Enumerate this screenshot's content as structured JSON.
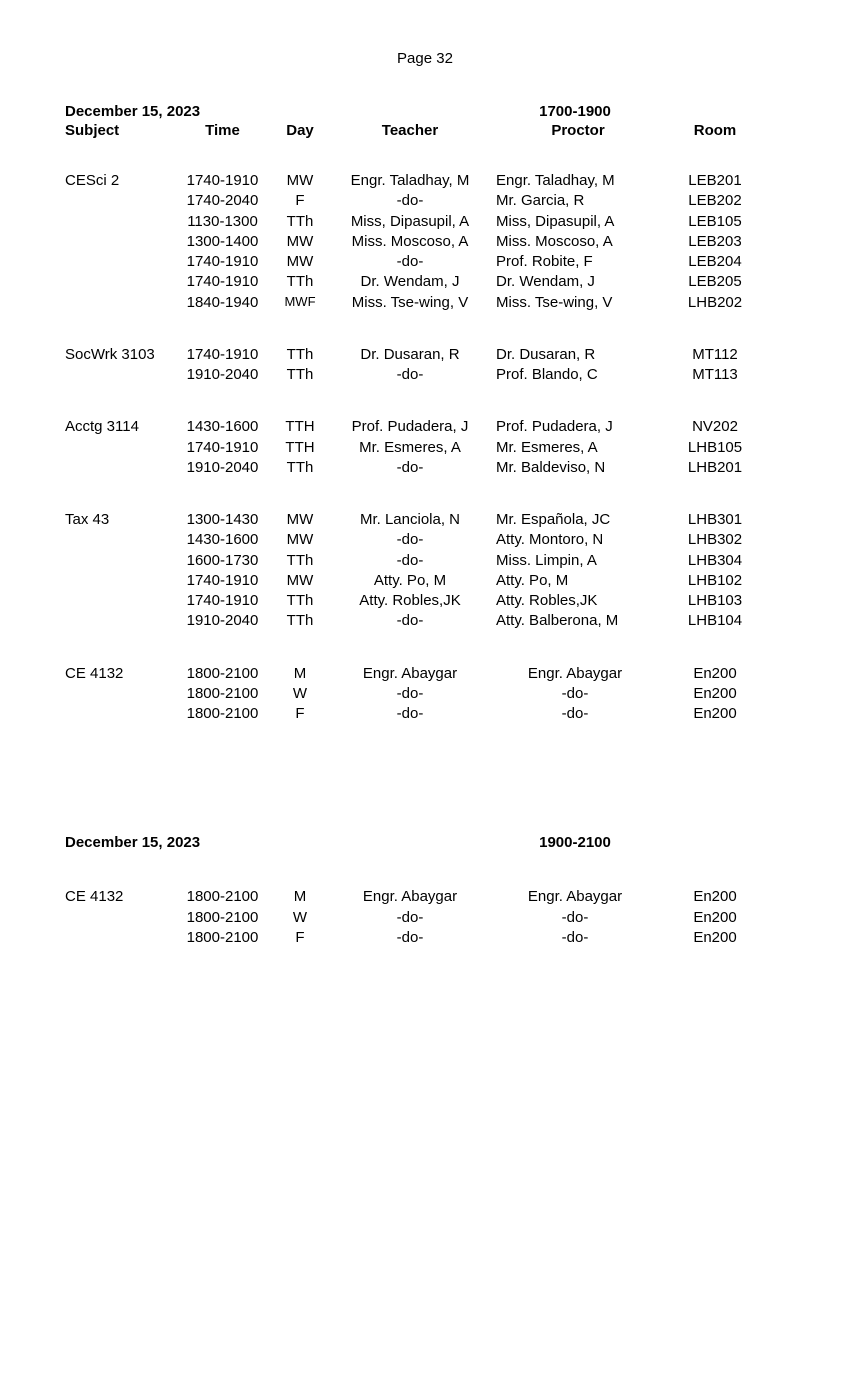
{
  "page_label": "Page 32",
  "headers": {
    "subject": "Subject",
    "time": "Time",
    "day": "Day",
    "teacher": "Teacher",
    "proctor": "Proctor",
    "room": "Room"
  },
  "section1": {
    "date": "December 15, 2023",
    "timeslot": "1700-1900",
    "groups": [
      {
        "subject": "CESci 2",
        "rows": [
          {
            "time": "1740-1910",
            "day": "MW",
            "teacher": "Engr. Taladhay, M",
            "proctor": "Engr. Taladhay, M",
            "room": "LEB201"
          },
          {
            "time": "1740-2040",
            "day": "F",
            "teacher": "-do-",
            "proctor": "Mr. Garcia, R",
            "room": "LEB202"
          },
          {
            "time": "1130-1300",
            "day": "TTh",
            "teacher": "Miss, Dipasupil, A",
            "proctor": "Miss, Dipasupil, A",
            "room": "LEB105"
          },
          {
            "time": "1300-1400",
            "day": "MW",
            "teacher": "Miss. Moscoso, A",
            "proctor": "Miss. Moscoso, A",
            "room": "LEB203"
          },
          {
            "time": "1740-1910",
            "day": "MW",
            "teacher": "-do-",
            "proctor": "Prof. Robite, F",
            "room": "LEB204"
          },
          {
            "time": "1740-1910",
            "day": "TTh",
            "teacher": "Dr. Wendam, J",
            "proctor": "Dr. Wendam, J",
            "room": "LEB205"
          },
          {
            "time": "1840-1940",
            "day": "MWF",
            "day_small": true,
            "teacher": "Miss. Tse-wing, V",
            "proctor": "Miss. Tse-wing, V",
            "room": "LHB202"
          }
        ]
      },
      {
        "subject": "SocWrk 3103",
        "rows": [
          {
            "time": "1740-1910",
            "day": "TTh",
            "teacher": "Dr. Dusaran, R",
            "proctor": "Dr. Dusaran, R",
            "room": "MT112"
          },
          {
            "time": "1910-2040",
            "day": "TTh",
            "teacher": "-do-",
            "proctor": "Prof. Blando, C",
            "room": "MT113"
          }
        ]
      },
      {
        "subject": "Acctg 3114",
        "rows": [
          {
            "time": "1430-1600",
            "day": "TTH",
            "teacher": "Prof. Pudadera, J",
            "proctor": "Prof. Pudadera, J",
            "room": "NV202"
          },
          {
            "time": "1740-1910",
            "day": "TTH",
            "teacher": "Mr. Esmeres, A",
            "proctor": "Mr. Esmeres, A",
            "room": "LHB105"
          },
          {
            "time": "1910-2040",
            "day": "TTh",
            "teacher": "-do-",
            "proctor": "Mr. Baldeviso, N",
            "room": "LHB201"
          }
        ]
      },
      {
        "subject": "Tax 43",
        "rows": [
          {
            "time": "1300-1430",
            "day": "MW",
            "teacher": "Mr. Lanciola, N",
            "proctor": "Mr. Española, JC",
            "room": "LHB301"
          },
          {
            "time": "1430-1600",
            "day": "MW",
            "teacher": "-do-",
            "proctor": "Atty. Montoro, N",
            "room": "LHB302"
          },
          {
            "time": "1600-1730",
            "day": "TTh",
            "teacher": "-do-",
            "proctor": "Miss. Limpin, A",
            "room": "LHB304"
          },
          {
            "time": "1740-1910",
            "day": "MW",
            "teacher": "Atty. Po, M",
            "proctor": "Atty. Po, M",
            "room": "LHB102"
          },
          {
            "time": "1740-1910",
            "day": "TTh",
            "teacher": "Atty. Robles,JK",
            "proctor": "Atty. Robles,JK",
            "room": "LHB103"
          },
          {
            "time": "1910-2040",
            "day": "TTh",
            "teacher": "-do-",
            "proctor": "Atty. Balberona, M",
            "room": "LHB104"
          }
        ]
      },
      {
        "subject": "CE 4132",
        "proctor_center": true,
        "rows": [
          {
            "time": "1800-2100",
            "day": "M",
            "teacher": "Engr. Abaygar",
            "proctor": "Engr. Abaygar",
            "room": "En200"
          },
          {
            "time": "1800-2100",
            "day": "W",
            "teacher": "-do-",
            "proctor": "-do-",
            "room": "En200"
          },
          {
            "time": "1800-2100",
            "day": "F",
            "teacher": "-do-",
            "proctor": "-do-",
            "room": "En200"
          }
        ]
      }
    ]
  },
  "section2": {
    "date": "December 15, 2023",
    "timeslot": "1900-2100",
    "groups": [
      {
        "subject": "CE 4132",
        "proctor_center": true,
        "rows": [
          {
            "time": "1800-2100",
            "day": "M",
            "teacher": "Engr. Abaygar",
            "proctor": "Engr. Abaygar",
            "room": "En200"
          },
          {
            "time": "1800-2100",
            "day": "W",
            "teacher": "-do-",
            "proctor": "-do-",
            "room": "En200"
          },
          {
            "time": "1800-2100",
            "day": "F",
            "teacher": "-do-",
            "proctor": "-do-",
            "room": "En200"
          }
        ]
      }
    ]
  }
}
